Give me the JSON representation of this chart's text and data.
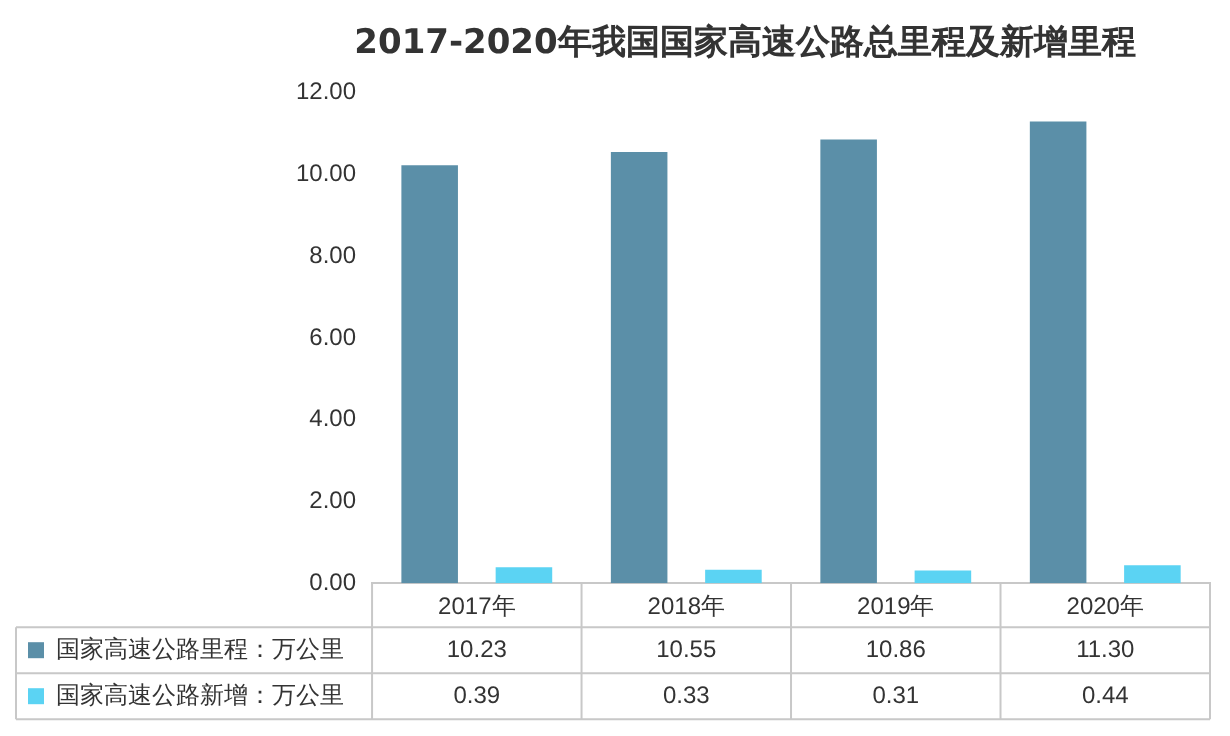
{
  "chart_data": {
    "type": "bar",
    "title": "2017-2020年我国国家高速公路总里程及新增里程",
    "categories": [
      "2017年",
      "2018年",
      "2019年",
      "2020年"
    ],
    "series": [
      {
        "name": "国家高速公路里程：万公里",
        "color": "#5b8fa8",
        "values": [
          10.23,
          10.55,
          10.86,
          11.3
        ],
        "value_labels": [
          "10.23",
          "10.55",
          "10.86",
          "11.30"
        ]
      },
      {
        "name": "国家高速公路新增：万公里",
        "color": "#5bd3f3",
        "values": [
          0.39,
          0.33,
          0.31,
          0.44
        ],
        "value_labels": [
          "0.39",
          "0.33",
          "0.31",
          "0.44"
        ]
      }
    ],
    "ylim": [
      0,
      12
    ],
    "yticks": [
      {
        "value": 0,
        "label": "0.00"
      },
      {
        "value": 2,
        "label": "2.00"
      },
      {
        "value": 4,
        "label": "4.00"
      },
      {
        "value": 6,
        "label": "6.00"
      },
      {
        "value": 8,
        "label": "8.00"
      },
      {
        "value": 10,
        "label": "10.00"
      },
      {
        "value": 12,
        "label": "12.00"
      }
    ],
    "grid": false,
    "legend": "bottom"
  }
}
